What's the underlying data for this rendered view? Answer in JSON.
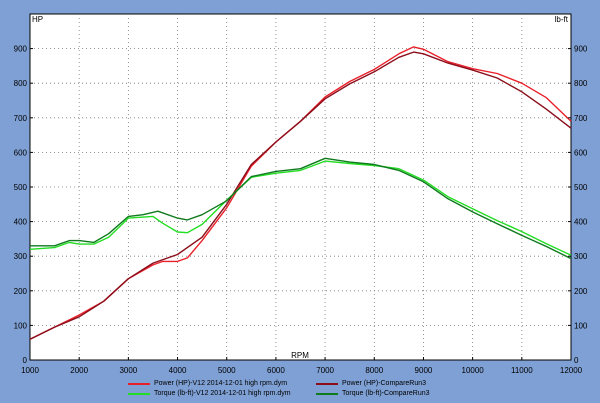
{
  "chart_data": {
    "type": "line",
    "xlabel": "RPM",
    "ylabel_left": "HP",
    "ylabel_right": "lb-ft",
    "xlim": [
      1000,
      12000
    ],
    "ylim": [
      0,
      1000
    ],
    "x_ticks": [
      1000,
      2000,
      3000,
      4000,
      5000,
      6000,
      7000,
      8000,
      9000,
      10000,
      11000,
      12000
    ],
    "y_ticks": [
      0,
      100,
      200,
      300,
      400,
      500,
      600,
      700,
      800,
      900
    ],
    "grid": true,
    "legend_position": "bottom",
    "series": [
      {
        "name": "Power (HP)-V12 2014-12-01 high rpm.dym",
        "color": "#e8202a",
        "x": [
          1000,
          1500,
          2000,
          2500,
          3000,
          3500,
          3700,
          4000,
          4200,
          4500,
          5000,
          5500,
          6000,
          6500,
          7000,
          7500,
          8000,
          8500,
          8800,
          9000,
          9500,
          10000,
          10500,
          11000,
          11500,
          12000
        ],
        "y": [
          60,
          95,
          130,
          170,
          235,
          275,
          285,
          285,
          295,
          345,
          440,
          560,
          630,
          690,
          760,
          805,
          840,
          885,
          905,
          898,
          862,
          842,
          828,
          800,
          758,
          690
        ]
      },
      {
        "name": "Power (HP)-CompareRun3",
        "color": "#8b0d1a",
        "x": [
          1000,
          1500,
          2000,
          2500,
          3000,
          3500,
          4000,
          4500,
          5000,
          5500,
          6000,
          6500,
          7000,
          7500,
          8000,
          8500,
          8800,
          9000,
          9500,
          10000,
          10500,
          11000,
          11500,
          12000
        ],
        "y": [
          60,
          95,
          125,
          170,
          235,
          280,
          305,
          355,
          450,
          565,
          630,
          690,
          755,
          798,
          833,
          875,
          890,
          885,
          858,
          838,
          815,
          775,
          725,
          670
        ]
      },
      {
        "name": "Torque (lb-ft)-V12 2014-12-01 high rpm.dym",
        "color": "#22dd22",
        "x": [
          1000,
          1500,
          1800,
          2000,
          2300,
          2600,
          3000,
          3500,
          3700,
          4000,
          4200,
          4500,
          5000,
          5500,
          6000,
          6500,
          7000,
          7500,
          8000,
          8500,
          9000,
          9500,
          10000,
          10500,
          11000,
          11500,
          12000
        ],
        "y": [
          320,
          325,
          340,
          335,
          335,
          355,
          410,
          415,
          395,
          370,
          368,
          392,
          462,
          528,
          540,
          548,
          575,
          568,
          562,
          553,
          520,
          472,
          437,
          403,
          371,
          336,
          303
        ]
      },
      {
        "name": "Torque (lb-ft)-CompareRun3",
        "color": "#0f7a1e",
        "x": [
          1000,
          1500,
          1800,
          2000,
          2300,
          2600,
          3000,
          3300,
          3600,
          4000,
          4200,
          4500,
          5000,
          5500,
          6000,
          6500,
          7000,
          7500,
          8000,
          8500,
          9000,
          9500,
          10000,
          10500,
          11000,
          11500,
          12000
        ],
        "y": [
          330,
          330,
          345,
          345,
          340,
          365,
          415,
          420,
          430,
          410,
          405,
          420,
          460,
          530,
          545,
          553,
          583,
          572,
          565,
          548,
          515,
          466,
          428,
          394,
          360,
          328,
          293
        ]
      }
    ]
  }
}
